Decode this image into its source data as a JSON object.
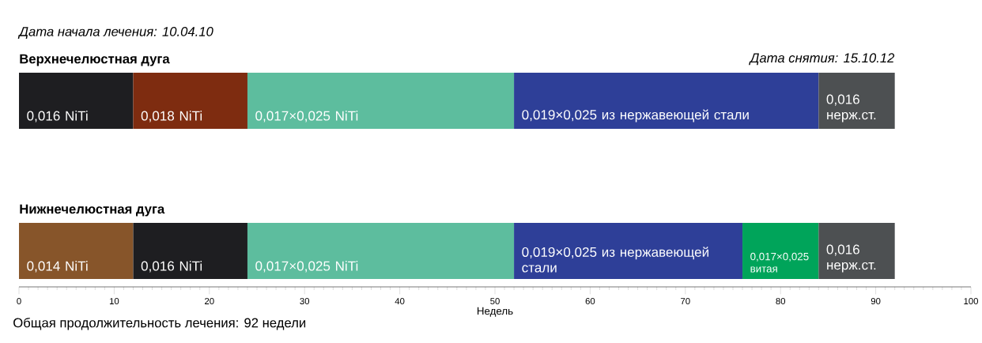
{
  "chart_data": {
    "type": "bar",
    "orientation": "horizontal",
    "stacked": true,
    "categories": [
      "Верхнечелюстная дуга",
      "Нижнечелюстная дуга"
    ],
    "series": [
      {
        "colors": [
          "#1e1e21",
          "#87552a"
        ],
        "values": [
          12,
          12
        ]
      },
      {
        "colors": [
          "#7e2c10",
          "#1e1e21"
        ],
        "values": [
          12,
          12
        ]
      },
      {
        "colors": [
          "#5dbd9e",
          "#5dbd9e"
        ],
        "values": [
          28,
          28
        ]
      },
      {
        "colors": [
          "#2e3f98",
          "#2e3f98"
        ],
        "values": [
          32,
          24
        ]
      },
      {
        "colors": [
          "#4d5052",
          "#00a45a"
        ],
        "values": [
          8,
          8
        ]
      },
      {
        "colors": [
          null,
          "#4d5052"
        ],
        "values": [
          null,
          8
        ]
      }
    ],
    "xlim": [
      0,
      100
    ],
    "xticks": [
      0,
      10,
      20,
      30,
      40,
      50,
      60,
      70,
      80,
      90,
      100
    ],
    "xlabel": "Недель",
    "annotations": [
      "Дата начала лечения: 10.04.10",
      "Дата снятия: 15.10.12",
      "Общая продолжительность лечения: 92 недели",
      {
        "text": "0,016 NiTi",
        "x": 0,
        "y": "Верхнечелюстная дуга"
      },
      {
        "text": "0,018 NiTi",
        "x": 12,
        "y": "Верхнечелюстная дуга"
      },
      {
        "text": "0,017×0,025 NiTi",
        "x": 24,
        "y": "Верхнечелюстная дуга"
      },
      {
        "text": "0,019×0,025 из нержавеющей стали",
        "x": 52,
        "y": "Верхнечелюстная дуга"
      },
      {
        "text": "0,016 нерж.ст.",
        "x": 84,
        "y": "Верхнечелюстная дуга"
      },
      {
        "text": "0,014 NiTi",
        "x": 0,
        "y": "Нижнечелюстная дуга"
      },
      {
        "text": "0,016 NiTi",
        "x": 12,
        "y": "Нижнечелюстная дуга"
      },
      {
        "text": "0,017×0,025 NiTi",
        "x": 24,
        "y": "Нижнечелюстная дуга"
      },
      {
        "text": "0,019×0,025 из нержавеющей стали",
        "x": 52,
        "y": "Нижнечелюстная дуга"
      },
      {
        "text": "0,017×0,025 витая",
        "x": 76,
        "y": "Нижнечелюстная дуга"
      },
      {
        "text": "0,016 нерж.ст.",
        "x": 84,
        "y": "Нижнечелюстная дуга"
      }
    ]
  }
}
